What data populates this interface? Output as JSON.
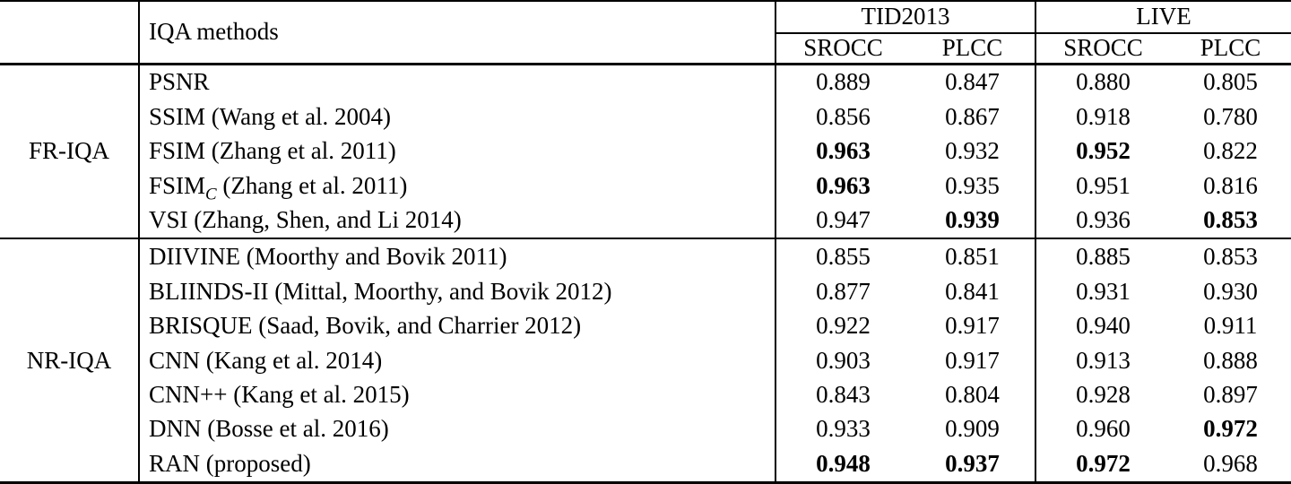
{
  "table": {
    "header": {
      "corner": "",
      "methods_label": "IQA methods",
      "datasets": [
        {
          "label": "TID2013",
          "subcols": [
            "SROCC",
            "PLCC"
          ]
        },
        {
          "label": "LIVE",
          "subcols": [
            "SROCC",
            "PLCC"
          ]
        }
      ]
    },
    "sections": [
      {
        "group": "FR-IQA",
        "rows": [
          {
            "method": "PSNR",
            "values": [
              "0.889",
              "0.847",
              "0.880",
              "0.805"
            ],
            "bold": [
              false,
              false,
              false,
              false
            ]
          },
          {
            "method": "SSIM (Wang et al. 2004)",
            "values": [
              "0.856",
              "0.867",
              "0.918",
              "0.780"
            ],
            "bold": [
              false,
              false,
              false,
              false
            ]
          },
          {
            "method": "FSIM (Zhang et al. 2011)",
            "values": [
              "0.963",
              "0.932",
              "0.952",
              "0.822"
            ],
            "bold": [
              true,
              false,
              true,
              false
            ]
          },
          {
            "method": "FSIM",
            "method_sub": "C",
            "method_rest": " (Zhang et al. 2011)",
            "values": [
              "0.963",
              "0.935",
              "0.951",
              "0.816"
            ],
            "bold": [
              true,
              false,
              false,
              false
            ]
          },
          {
            "method": "VSI (Zhang, Shen, and Li 2014)",
            "values": [
              "0.947",
              "0.939",
              "0.936",
              "0.853"
            ],
            "bold": [
              false,
              true,
              false,
              true
            ]
          }
        ]
      },
      {
        "group": "NR-IQA",
        "rows": [
          {
            "method": "DIIVINE (Moorthy and Bovik 2011)",
            "values": [
              "0.855",
              "0.851",
              "0.885",
              "0.853"
            ],
            "bold": [
              false,
              false,
              false,
              false
            ]
          },
          {
            "method": "BLIINDS-II (Mittal, Moorthy, and Bovik 2012)",
            "values": [
              "0.877",
              "0.841",
              "0.931",
              "0.930"
            ],
            "bold": [
              false,
              false,
              false,
              false
            ]
          },
          {
            "method": "BRISQUE (Saad, Bovik, and Charrier 2012)",
            "values": [
              "0.922",
              "0.917",
              "0.940",
              "0.911"
            ],
            "bold": [
              false,
              false,
              false,
              false
            ]
          },
          {
            "method": "CNN (Kang et al. 2014)",
            "values": [
              "0.903",
              "0.917",
              "0.913",
              "0.888"
            ],
            "bold": [
              false,
              false,
              false,
              false
            ]
          },
          {
            "method": "CNN++ (Kang et al. 2015)",
            "values": [
              "0.843",
              "0.804",
              "0.928",
              "0.897"
            ],
            "bold": [
              false,
              false,
              false,
              false
            ]
          },
          {
            "method": "DNN (Bosse et al. 2016)",
            "values": [
              "0.933",
              "0.909",
              "0.960",
              "0.972"
            ],
            "bold": [
              false,
              false,
              false,
              true
            ]
          },
          {
            "method": "RAN (proposed)",
            "values": [
              "0.948",
              "0.937",
              "0.972",
              "0.968"
            ],
            "bold": [
              true,
              true,
              true,
              false
            ]
          }
        ]
      }
    ]
  }
}
